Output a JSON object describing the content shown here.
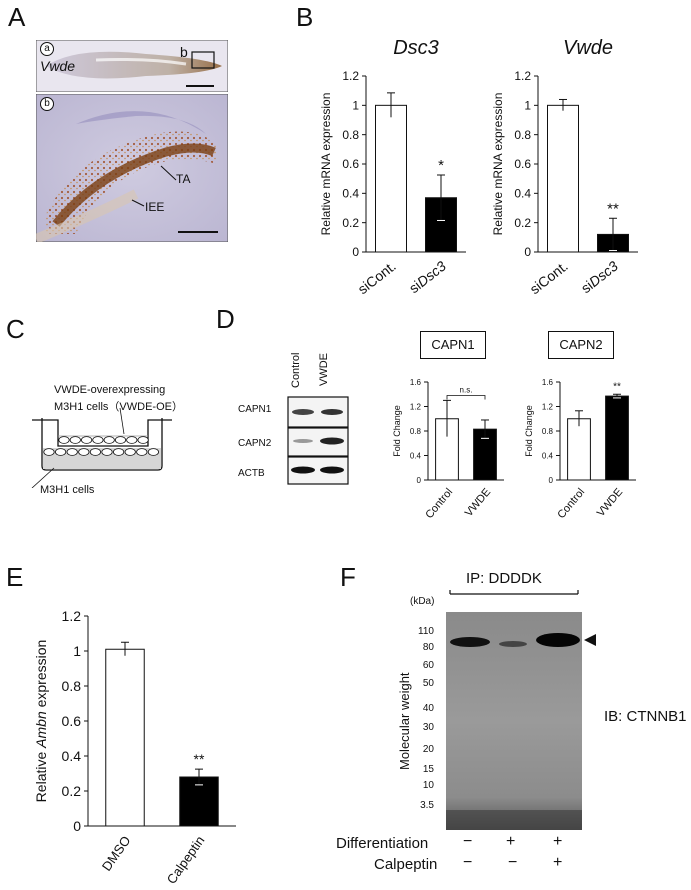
{
  "panels": {
    "a": {
      "letter": "A",
      "inset_a": "a",
      "inset_b": "b",
      "gene": "Vwde",
      "box_label": "b",
      "annot_ta": "TA",
      "annot_iee": "IEE"
    },
    "b": {
      "letter": "B"
    },
    "c": {
      "letter": "C",
      "label_top_1": "VWDE-overexpressing",
      "label_top_2": "M3H1 cells（VWDE-OE）",
      "label_bottom": "M3H1 cells"
    },
    "d": {
      "letter": "D",
      "col_control": "Control",
      "col_vwde": "VWDE",
      "rows": [
        "CAPN1",
        "CAPN2",
        "ACTB"
      ],
      "box_capn1": "CAPN1",
      "box_capn2": "CAPN2"
    },
    "e": {
      "letter": "E"
    },
    "f": {
      "letter": "F",
      "ip_label": "IP: DDDDK",
      "kda": "(kDa)",
      "mw_title": "Molecular weight",
      "mw_marks": [
        "110",
        "80",
        "60",
        "50",
        "40",
        "30",
        "20",
        "15",
        "10",
        "3.5"
      ],
      "ib_label": "IB: CTNNB1",
      "row_diff": "Differentiation",
      "row_calp": "Calpeptin",
      "diff_signs": [
        "−",
        "+",
        "+"
      ],
      "calp_signs": [
        "−",
        "−",
        "+"
      ]
    }
  },
  "chart_data": [
    {
      "id": "B-Dsc3",
      "type": "bar",
      "title": "Dsc3",
      "ylabel": "Relative mRNA expression",
      "categories": [
        "siCont.",
        "siDsc3"
      ],
      "values": [
        1.0,
        0.37
      ],
      "errors": [
        0.085,
        0.155
      ],
      "bar_colors": [
        "#ffffff",
        "#000000"
      ],
      "ylim": [
        0,
        1.2
      ],
      "yticks": [
        "0",
        "0.2",
        "0.4",
        "0.6",
        "0.8",
        "1",
        "1.2"
      ],
      "significance": [
        "",
        "*"
      ]
    },
    {
      "id": "B-Vwde",
      "type": "bar",
      "title": "Vwde",
      "ylabel": "Relative mRNA expression",
      "categories": [
        "siCont.",
        "siDsc3"
      ],
      "values": [
        1.0,
        0.12
      ],
      "errors": [
        0.04,
        0.11
      ],
      "bar_colors": [
        "#ffffff",
        "#000000"
      ],
      "ylim": [
        0,
        1.2
      ],
      "yticks": [
        "0",
        "0.2",
        "0.4",
        "0.6",
        "0.8",
        "1",
        "1.2"
      ],
      "significance": [
        "",
        "**"
      ]
    },
    {
      "id": "D-CAPN1",
      "type": "bar",
      "ylabel": "Fold Change",
      "categories": [
        "Control",
        "VWDE"
      ],
      "values": [
        1.0,
        0.83
      ],
      "errors": [
        0.3,
        0.15
      ],
      "bar_colors": [
        "#ffffff",
        "#000000"
      ],
      "ylim": [
        0,
        1.6
      ],
      "yticks": [
        "0",
        "0.4",
        "0.8",
        "1.2",
        "1.6"
      ],
      "bracket": "n.s."
    },
    {
      "id": "D-CAPN2",
      "type": "bar",
      "ylabel": "Fold Change",
      "categories": [
        "Control",
        "VWDE"
      ],
      "values": [
        1.0,
        1.37
      ],
      "errors": [
        0.13,
        0.03
      ],
      "bar_colors": [
        "#ffffff",
        "#000000"
      ],
      "ylim": [
        0,
        1.6
      ],
      "yticks": [
        "0",
        "0.4",
        "0.8",
        "1.2",
        "1.6"
      ],
      "significance": [
        "",
        "**"
      ]
    },
    {
      "id": "E-Ambn",
      "type": "bar",
      "ylabel_prefix": "Relative ",
      "ylabel_gene": "Ambn",
      "ylabel_suffix": " expression",
      "categories": [
        "DMSO",
        "Calpeptin"
      ],
      "values": [
        1.01,
        0.28
      ],
      "errors": [
        0.04,
        0.045
      ],
      "bar_colors": [
        "#ffffff",
        "#000000"
      ],
      "ylim": [
        0,
        1.2
      ],
      "yticks": [
        "0",
        "0.2",
        "0.4",
        "0.6",
        "0.8",
        "1",
        "1.2"
      ],
      "significance": [
        "",
        "**"
      ]
    }
  ]
}
